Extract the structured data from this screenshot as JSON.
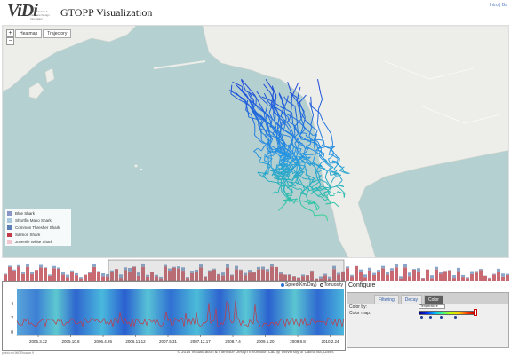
{
  "header": {
    "logo_text": "ViDi",
    "logo_sub": "Visualization & Interface Design Innovation",
    "title": "GTOPP Visualization",
    "link_intro": "Intro",
    "link_sep": " | ",
    "link_ba": "Ba"
  },
  "map": {
    "zoom_in": "+",
    "zoom_out": "−",
    "tabs": [
      "Heatmap",
      "Trajectory"
    ]
  },
  "legend": {
    "items": [
      {
        "label": "Blue Shark",
        "color": "#8a96c8"
      },
      {
        "label": "Shortfin Mako Shark",
        "color": "#a9c7dd"
      },
      {
        "label": "Common Thresher Shark",
        "color": "#5d7fb8"
      },
      {
        "label": "Salmon Shark",
        "color": "#c23b4a"
      },
      {
        "label": "Juvenile White Shark",
        "color": "#f2c6cf"
      }
    ]
  },
  "chart": {
    "toggle_speed": "Speed(Km/Day)",
    "toggle_tortuosity": "Tortuosity",
    "y_ticks": [
      "4",
      "2",
      "0"
    ],
    "x_ticks": [
      "2005.3.22",
      "2005.10.8",
      "2006.4.26",
      "2006.11.12",
      "2007.5.31",
      "2007.12.17",
      "2008.7.4",
      "2009.1.20",
      "2009.8.8",
      "2010.2.24"
    ]
  },
  "config": {
    "title": "Configure",
    "tabs": [
      "Filtering",
      "Decay",
      "Color"
    ],
    "active_tab": "Color",
    "color_by_label": "Color by:",
    "color_by_value": "Temperature",
    "color_map_label": "Color map:"
  },
  "footer": {
    "text": "© 2014 Visualization & Interface Design Innovation Lab @ University of California, Davis",
    "left": "point.rnd.960/Browse.9"
  },
  "colors": {
    "ocean": "#b5d0d0",
    "land": "#ededea",
    "track_cool": "#1c3fd8",
    "track_warm": "#38e87a",
    "speed_line": "#c0394a"
  }
}
